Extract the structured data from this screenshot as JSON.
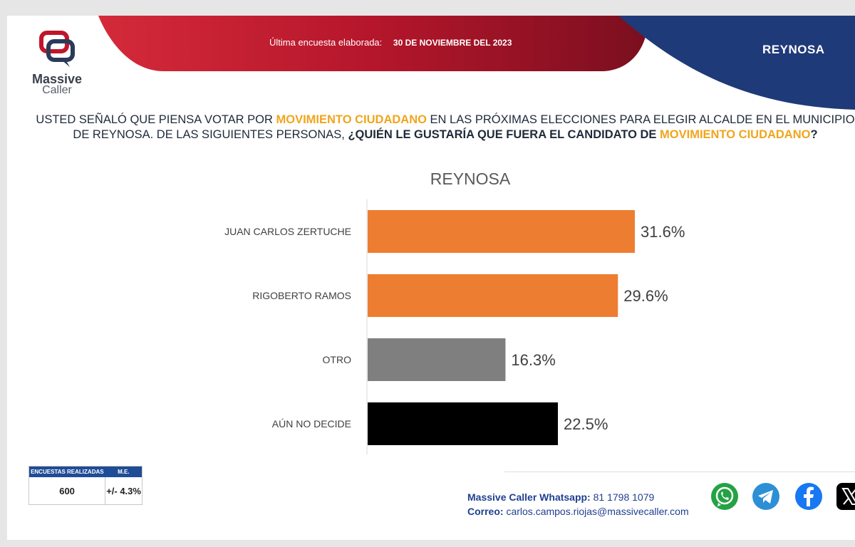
{
  "header": {
    "logo_name": "Massive",
    "logo_sub": "Caller",
    "date_label": "Última encuesta elaborada:",
    "date_value": "30 DE NOVIEMBRE  DEL 2023",
    "region": "REYNOSA"
  },
  "question": {
    "p1": "USTED SEÑALÓ QUE PIENSA VOTAR POR ",
    "h1": "MOVIMIENTO CIUDADANO",
    "p2": " EN LAS PRÓXIMAS ELECCIONES PARA ELEGIR ALCALDE EN EL MUNICIPIO DE REYNOSA. DE LAS SIGUIENTES PERSONAS, ",
    "b1": "¿QUIÉN LE GUSTARÍA QUE FUERA EL CANDIDATO DE ",
    "h2": "MOVIMIENTO CIUDADANO",
    "b2": "?"
  },
  "chart_data": {
    "type": "bar",
    "orientation": "horizontal",
    "title": "REYNOSA",
    "categories": [
      "JUAN CARLOS ZERTUCHE",
      "RIGOBERTO RAMOS",
      "OTRO",
      "AÚN NO DECIDE"
    ],
    "values": [
      31.6,
      29.6,
      16.3,
      22.5
    ],
    "value_labels": [
      "31.6%",
      "29.6%",
      "16.3%",
      "22.5%"
    ],
    "colors": [
      "#ed7d31",
      "#ed7d31",
      "#7f7f7f",
      "#000000"
    ],
    "xlim": [
      0,
      60
    ],
    "grid": false,
    "legend": "none"
  },
  "stats": {
    "col1_header": "ENCUESTAS REALIZADAS",
    "col2_header": "M.E.",
    "col1_value": "600",
    "col2_value": "+/- 4.3%"
  },
  "contact": {
    "whatsapp_label": "Massive Caller Whatsapp:",
    "whatsapp_value": "81 1798 1079",
    "email_label": "Correo:",
    "email_value": "carlos.campos.riojas@massivecaller.com"
  },
  "social": {
    "icons": [
      "whatsapp-icon",
      "telegram-icon",
      "facebook-icon",
      "x-icon"
    ],
    "colors": {
      "whatsapp": "#25a244",
      "telegram": "#2d8fd5",
      "facebook": "#1877f2",
      "x": "#000000"
    }
  },
  "colors": {
    "accent_red": "#b5162b",
    "accent_blue": "#1f3a78",
    "highlight": "#f0a51c"
  }
}
